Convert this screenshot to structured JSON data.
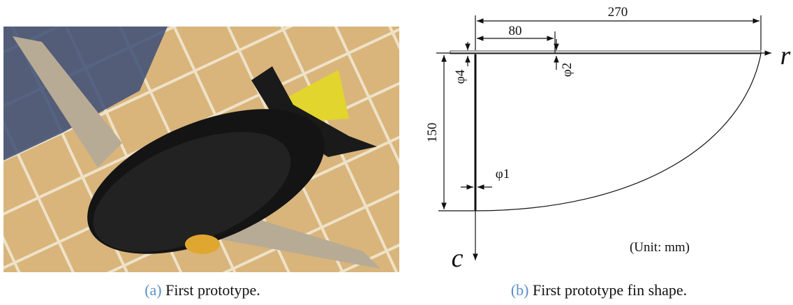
{
  "figure": {
    "panels": [
      {
        "label": "(a)",
        "caption": "First prototype."
      },
      {
        "label": "(b)",
        "caption": "First prototype fin shape.",
        "dimensions": {
          "span": "270",
          "root_part": "80",
          "thickness_root": "φ4",
          "thickness_tip": "φ2",
          "chord": "150",
          "thickness_edge": "φ1"
        },
        "axes": {
          "horizontal": "r",
          "vertical": "c"
        },
        "unit_note": "(Unit: mm)"
      }
    ]
  }
}
